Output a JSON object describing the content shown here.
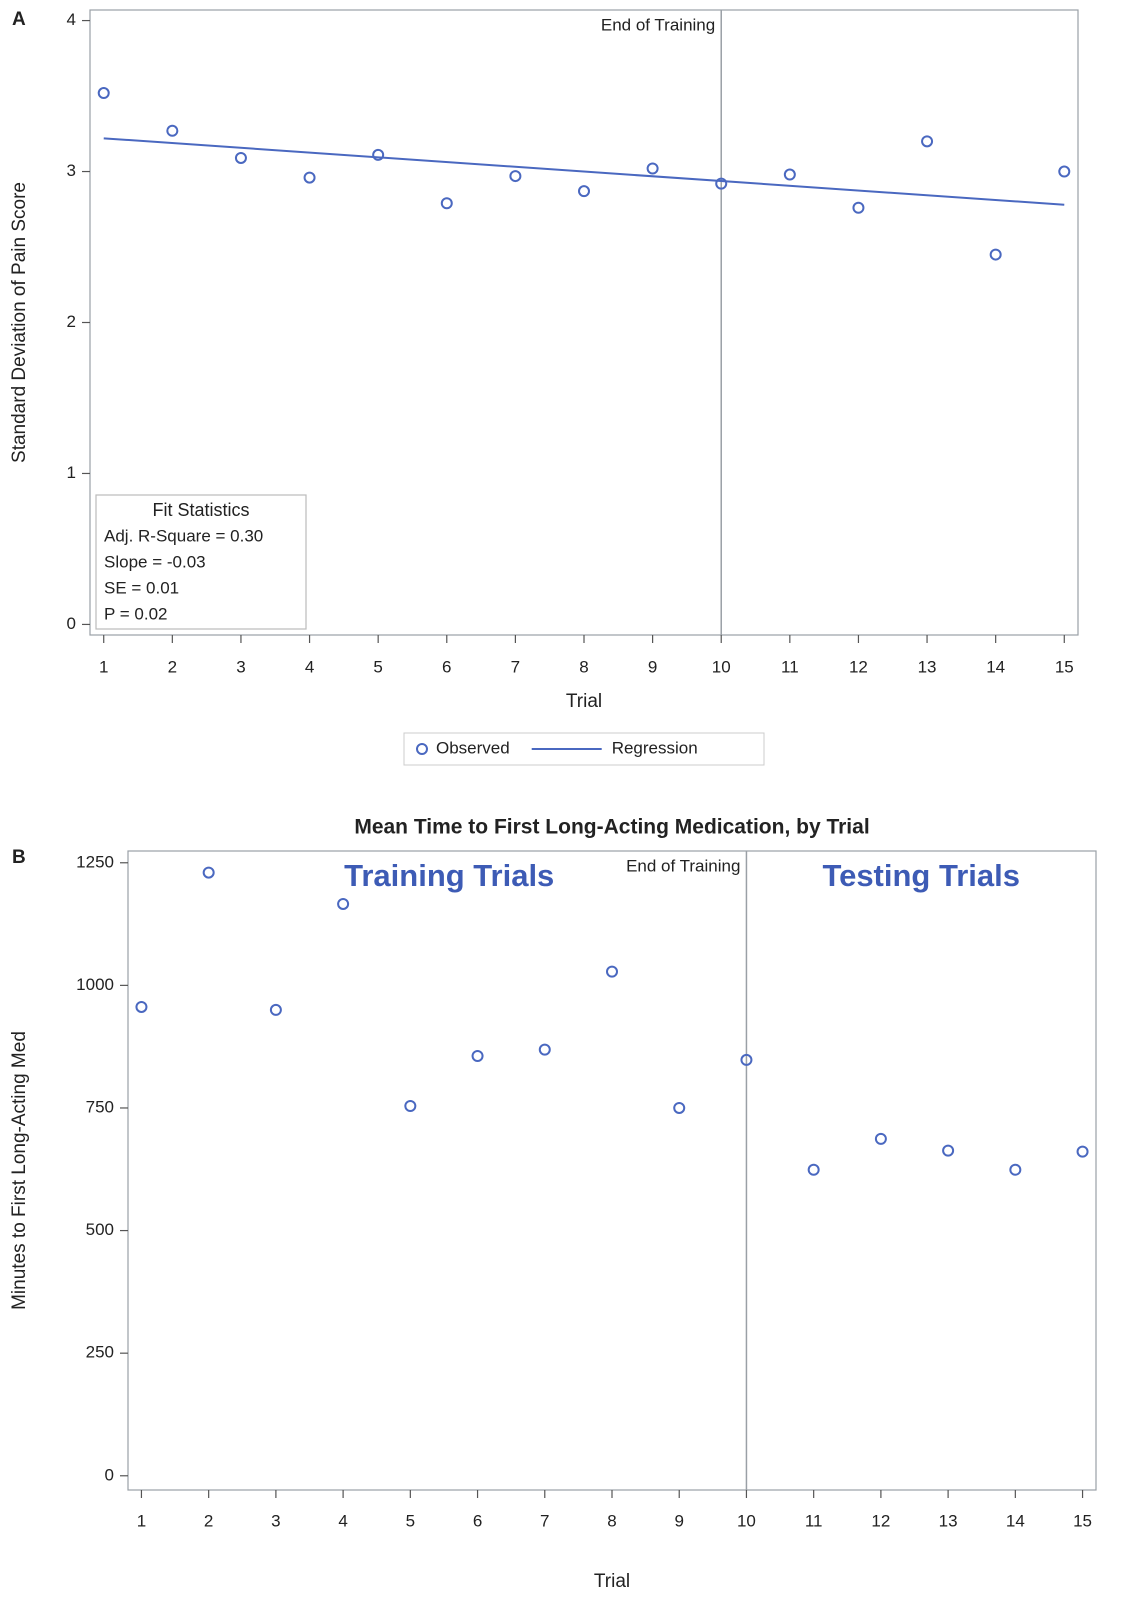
{
  "chart_data": [
    {
      "type": "scatter",
      "panel": "A",
      "x_label": "Trial",
      "y_label": "Standard Deviation of Pain Score",
      "x": [
        1,
        2,
        3,
        4,
        5,
        6,
        7,
        8,
        9,
        10,
        11,
        12,
        13,
        14,
        15
      ],
      "series": [
        {
          "name": "Observed",
          "style": "marker",
          "color": "#4a68c0",
          "values": [
            3.52,
            3.27,
            3.09,
            2.96,
            3.11,
            2.79,
            2.97,
            2.87,
            3.02,
            2.92,
            2.98,
            2.76,
            3.2,
            2.45,
            3.0
          ]
        },
        {
          "name": "Regression",
          "style": "line",
          "color": "#4a68c0",
          "x": [
            1,
            15
          ],
          "values": [
            3.22,
            2.78
          ]
        }
      ],
      "xlim": [
        0.8,
        15.2
      ],
      "xticks": [
        1,
        2,
        3,
        4,
        5,
        6,
        7,
        8,
        9,
        10,
        11,
        12,
        13,
        14,
        15
      ],
      "ylim": [
        -0.07,
        4.07
      ],
      "yticks": [
        0,
        1,
        2,
        3,
        4
      ],
      "reference_line": {
        "x": 10,
        "label": "End of Training"
      },
      "fit_statistics": {
        "title": "Fit Statistics",
        "lines": [
          "Adj. R-Square = 0.30",
          "Slope = -0.03",
          "SE = 0.01",
          "P = 0.02"
        ]
      },
      "legend": "bottom"
    },
    {
      "type": "scatter",
      "panel": "B",
      "title": "Mean Time to First Long-Acting Medication, by Trial",
      "x_label": "Trial",
      "y_label": "Minutes to First Long-Acting Med",
      "x": [
        1,
        2,
        3,
        4,
        5,
        6,
        7,
        8,
        9,
        10,
        11,
        12,
        13,
        14,
        15
      ],
      "values": [
        956,
        1230,
        950,
        1166,
        754,
        856,
        869,
        1028,
        750,
        848,
        624,
        687,
        663,
        624,
        661
      ],
      "color": "#4a68c0",
      "xlim": [
        0.8,
        15.2
      ],
      "xticks": [
        1,
        2,
        3,
        4,
        5,
        6,
        7,
        8,
        9,
        10,
        11,
        12,
        13,
        14,
        15
      ],
      "ylim": [
        -29,
        1274
      ],
      "yticks": [
        0,
        250,
        500,
        750,
        1000,
        1250
      ],
      "reference_line": {
        "x": 10,
        "label": "End of Training"
      },
      "annotations": [
        "Training Trials",
        "Testing Trials"
      ],
      "annotation_color": "#3d5bb5"
    }
  ]
}
